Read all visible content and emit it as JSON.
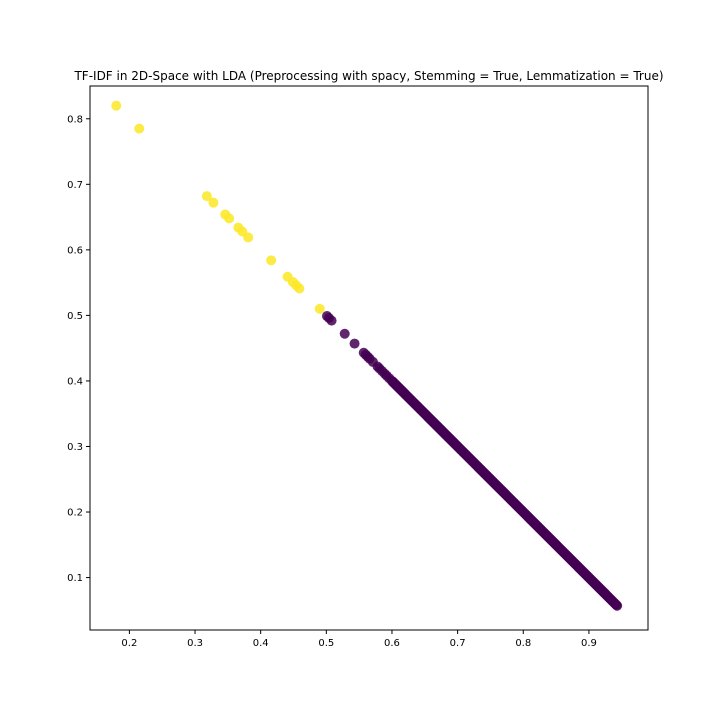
{
  "chart_data": {
    "type": "scatter",
    "title": "TF-IDF in 2D-Space with LDA (Preprocessing with spacy, Stemming = True, Lemmatization = True)",
    "xlabel": "",
    "ylabel": "",
    "xlim": [
      0.14,
      0.99
    ],
    "ylim": [
      0.02,
      0.85
    ],
    "xticks": [
      0.2,
      0.3,
      0.4,
      0.5,
      0.6,
      0.7,
      0.8,
      0.9
    ],
    "yticks": [
      0.1,
      0.2,
      0.3,
      0.4,
      0.5,
      0.6,
      0.7,
      0.8
    ],
    "grid": false,
    "legend": "none",
    "colors": {
      "class_1": "#fde725",
      "class_0": "#440154"
    },
    "series": [
      {
        "color": "#fde725",
        "points": [
          [
            0.18,
            0.82
          ],
          [
            0.215,
            0.785
          ],
          [
            0.318,
            0.682
          ],
          [
            0.328,
            0.672
          ],
          [
            0.346,
            0.654
          ],
          [
            0.352,
            0.648
          ],
          [
            0.366,
            0.634
          ],
          [
            0.372,
            0.628
          ],
          [
            0.381,
            0.619
          ],
          [
            0.416,
            0.584
          ],
          [
            0.441,
            0.559
          ],
          [
            0.449,
            0.551
          ],
          [
            0.454,
            0.546
          ],
          [
            0.459,
            0.541
          ],
          [
            0.49,
            0.51
          ]
        ]
      },
      {
        "color": "#440154",
        "dense_segment": {
          "x_start": 0.6,
          "x_end": 0.943,
          "count": 300
        },
        "points": [
          [
            0.501,
            0.499
          ],
          [
            0.504,
            0.496
          ],
          [
            0.508,
            0.492
          ],
          [
            0.528,
            0.472
          ],
          [
            0.543,
            0.457
          ],
          [
            0.557,
            0.443
          ],
          [
            0.56,
            0.44
          ],
          [
            0.563,
            0.437
          ],
          [
            0.566,
            0.434
          ],
          [
            0.571,
            0.429
          ],
          [
            0.578,
            0.422
          ],
          [
            0.581,
            0.419
          ],
          [
            0.585,
            0.415
          ],
          [
            0.589,
            0.411
          ],
          [
            0.592,
            0.408
          ],
          [
            0.596,
            0.404
          ]
        ]
      }
    ]
  }
}
